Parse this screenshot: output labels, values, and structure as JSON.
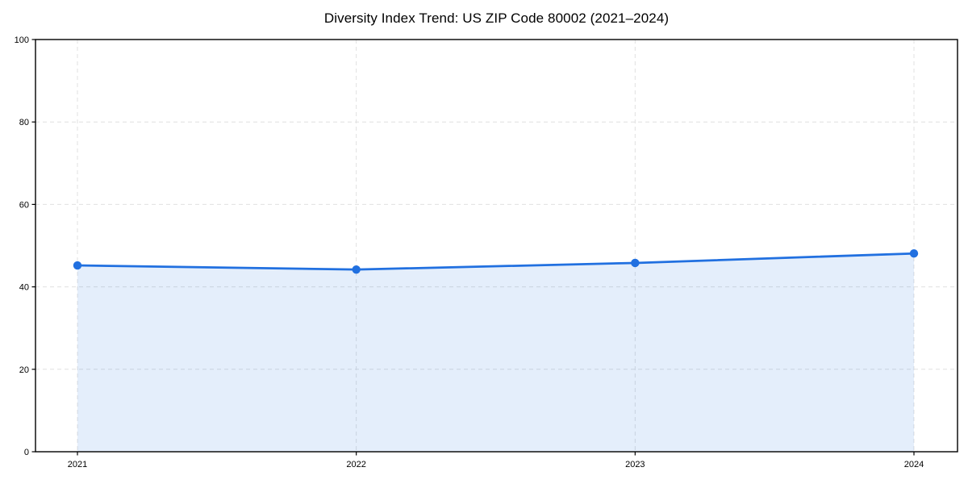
{
  "chart_data": {
    "type": "area",
    "title": "Diversity Index Trend: US ZIP Code 80002 (2021–2024)",
    "categories": [
      "2021",
      "2022",
      "2023",
      "2024"
    ],
    "series": [
      {
        "name": "Diversity Index",
        "values": [
          45.2,
          44.2,
          45.8,
          48.1
        ]
      }
    ],
    "xlabel": "",
    "ylabel": "",
    "ylim": [
      0,
      100
    ],
    "yticks": [
      0,
      20,
      40,
      60,
      80,
      100
    ],
    "grid": true,
    "grid_style": "dashed",
    "legend": "none",
    "colors": {
      "line": "#2170e0",
      "marker": "#2170e0",
      "fill": "#2170e0",
      "fill_opacity": 0.12,
      "grid": "#e0e0e0",
      "spine": "#000000",
      "tick_label": "#000000",
      "title": "#000000",
      "background": "#ffffff"
    }
  }
}
